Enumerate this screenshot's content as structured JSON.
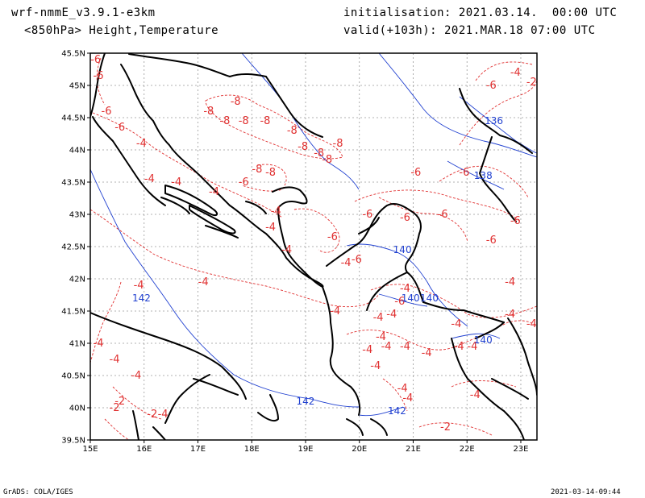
{
  "header": {
    "model": "wrf-nmmE_v3.9.1-e3km",
    "product": "<850hPa> Height,Temperature",
    "init": "initialisation: 2021.03.14.  00:00 UTC",
    "valid": "valid(+103h): 2021.MAR.18 07:00 UTC"
  },
  "footer": {
    "credit": "GrADS: COLA/IGES",
    "timestamp": "2021-03-14-09:44"
  },
  "axes": {
    "lon_ticks": [
      "15E",
      "16E",
      "17E",
      "18E",
      "19E",
      "20E",
      "21E",
      "22E",
      "23E"
    ],
    "lat_ticks": [
      "39.5N",
      "40N",
      "40.5N",
      "41N",
      "41.5N",
      "42N",
      "42.5N",
      "43N",
      "43.5N",
      "44N",
      "44.5N",
      "45N",
      "45.5N"
    ],
    "lon_range": [
      15,
      23.3
    ],
    "lat_range": [
      39.5,
      45.5
    ],
    "grid": true
  },
  "colors": {
    "temperature": "#e03030",
    "height": "#2040d0",
    "coast": "#000000"
  },
  "temperature_labels": [
    {
      "lon": 15.1,
      "lat": 45.4,
      "text": "-6"
    },
    {
      "lon": 15.15,
      "lat": 45.15,
      "text": "-6"
    },
    {
      "lon": 15.3,
      "lat": 44.6,
      "text": "-6"
    },
    {
      "lon": 15.55,
      "lat": 44.35,
      "text": "-6"
    },
    {
      "lon": 15.95,
      "lat": 44.1,
      "text": "-4"
    },
    {
      "lon": 16.1,
      "lat": 43.55,
      "text": "-4"
    },
    {
      "lon": 16.6,
      "lat": 43.5,
      "text": "-4"
    },
    {
      "lon": 17.2,
      "lat": 44.6,
      "text": "-8"
    },
    {
      "lon": 17.7,
      "lat": 44.75,
      "text": "-8"
    },
    {
      "lon": 17.5,
      "lat": 44.45,
      "text": "-8"
    },
    {
      "lon": 17.85,
      "lat": 44.45,
      "text": "-8"
    },
    {
      "lon": 18.25,
      "lat": 44.45,
      "text": "-8"
    },
    {
      "lon": 18.75,
      "lat": 44.3,
      "text": "-8"
    },
    {
      "lon": 18.95,
      "lat": 44.05,
      "text": "-8"
    },
    {
      "lon": 19.25,
      "lat": 43.95,
      "text": "-8"
    },
    {
      "lon": 19.4,
      "lat": 43.85,
      "text": "-8"
    },
    {
      "lon": 19.6,
      "lat": 44.1,
      "text": "-8"
    },
    {
      "lon": 18.1,
      "lat": 43.7,
      "text": "-8"
    },
    {
      "lon": 18.35,
      "lat": 43.65,
      "text": "-8"
    },
    {
      "lon": 17.85,
      "lat": 43.5,
      "text": "-6"
    },
    {
      "lon": 17.3,
      "lat": 43.35,
      "text": "-4"
    },
    {
      "lon": 18.45,
      "lat": 43.05,
      "text": "-4"
    },
    {
      "lon": 18.35,
      "lat": 42.8,
      "text": "-4"
    },
    {
      "lon": 18.65,
      "lat": 42.45,
      "text": "-4"
    },
    {
      "lon": 19.5,
      "lat": 42.65,
      "text": "-6"
    },
    {
      "lon": 20.15,
      "lat": 43.0,
      "text": "-6"
    },
    {
      "lon": 20.85,
      "lat": 42.95,
      "text": "-6"
    },
    {
      "lon": 21.55,
      "lat": 43.0,
      "text": "-6"
    },
    {
      "lon": 21.05,
      "lat": 43.65,
      "text": "-6"
    },
    {
      "lon": 21.95,
      "lat": 43.65,
      "text": "-6"
    },
    {
      "lon": 22.45,
      "lat": 42.6,
      "text": "-6"
    },
    {
      "lon": 22.9,
      "lat": 42.9,
      "text": "-6"
    },
    {
      "lon": 22.45,
      "lat": 45.0,
      "text": "-6"
    },
    {
      "lon": 22.9,
      "lat": 45.2,
      "text": "-4"
    },
    {
      "lon": 23.2,
      "lat": 45.05,
      "text": "-2"
    },
    {
      "lon": 19.75,
      "lat": 42.25,
      "text": "-4"
    },
    {
      "lon": 19.95,
      "lat": 42.3,
      "text": "-6"
    },
    {
      "lon": 20.85,
      "lat": 41.85,
      "text": "-4"
    },
    {
      "lon": 20.75,
      "lat": 41.65,
      "text": "-6"
    },
    {
      "lon": 20.6,
      "lat": 41.45,
      "text": "-4"
    },
    {
      "lon": 20.35,
      "lat": 41.4,
      "text": "-4"
    },
    {
      "lon": 19.55,
      "lat": 41.5,
      "text": "-4"
    },
    {
      "lon": 17.1,
      "lat": 41.95,
      "text": "-4"
    },
    {
      "lon": 15.9,
      "lat": 41.9,
      "text": "-4"
    },
    {
      "lon": 15.15,
      "lat": 41.0,
      "text": "-4"
    },
    {
      "lon": 15.45,
      "lat": 40.75,
      "text": "-4"
    },
    {
      "lon": 15.85,
      "lat": 40.5,
      "text": "-4"
    },
    {
      "lon": 15.55,
      "lat": 40.1,
      "text": "-2"
    },
    {
      "lon": 15.45,
      "lat": 40.0,
      "text": "-2"
    },
    {
      "lon": 16.15,
      "lat": 39.9,
      "text": "-2"
    },
    {
      "lon": 16.35,
      "lat": 39.9,
      "text": "-4"
    },
    {
      "lon": 20.4,
      "lat": 41.1,
      "text": "-4"
    },
    {
      "lon": 20.15,
      "lat": 40.9,
      "text": "-4"
    },
    {
      "lon": 20.5,
      "lat": 40.95,
      "text": "-4"
    },
    {
      "lon": 20.85,
      "lat": 40.95,
      "text": "-4"
    },
    {
      "lon": 20.3,
      "lat": 40.65,
      "text": "-4"
    },
    {
      "lon": 21.25,
      "lat": 40.85,
      "text": "-4"
    },
    {
      "lon": 21.8,
      "lat": 41.3,
      "text": "-4"
    },
    {
      "lon": 21.85,
      "lat": 40.95,
      "text": "-4"
    },
    {
      "lon": 22.1,
      "lat": 40.95,
      "text": "-4"
    },
    {
      "lon": 22.8,
      "lat": 41.95,
      "text": "-4"
    },
    {
      "lon": 22.8,
      "lat": 41.45,
      "text": "-4"
    },
    {
      "lon": 23.2,
      "lat": 41.3,
      "text": "-4"
    },
    {
      "lon": 20.8,
      "lat": 40.3,
      "text": "-4"
    },
    {
      "lon": 20.9,
      "lat": 40.15,
      "text": "-4"
    },
    {
      "lon": 22.15,
      "lat": 40.2,
      "text": "-4"
    },
    {
      "lon": 21.6,
      "lat": 39.7,
      "text": "-2"
    }
  ],
  "height_labels": [
    {
      "lon": 22.5,
      "lat": 44.45,
      "text": "136"
    },
    {
      "lon": 22.3,
      "lat": 43.6,
      "text": "138"
    },
    {
      "lon": 20.8,
      "lat": 42.45,
      "text": "140"
    },
    {
      "lon": 20.95,
      "lat": 41.7,
      "text": "140"
    },
    {
      "lon": 21.3,
      "lat": 41.7,
      "text": "140"
    },
    {
      "lon": 22.3,
      "lat": 41.05,
      "text": "140"
    },
    {
      "lon": 15.95,
      "lat": 41.7,
      "text": "142"
    },
    {
      "lon": 19.0,
      "lat": 40.1,
      "text": "142"
    },
    {
      "lon": 20.7,
      "lat": 39.95,
      "text": "142"
    }
  ]
}
